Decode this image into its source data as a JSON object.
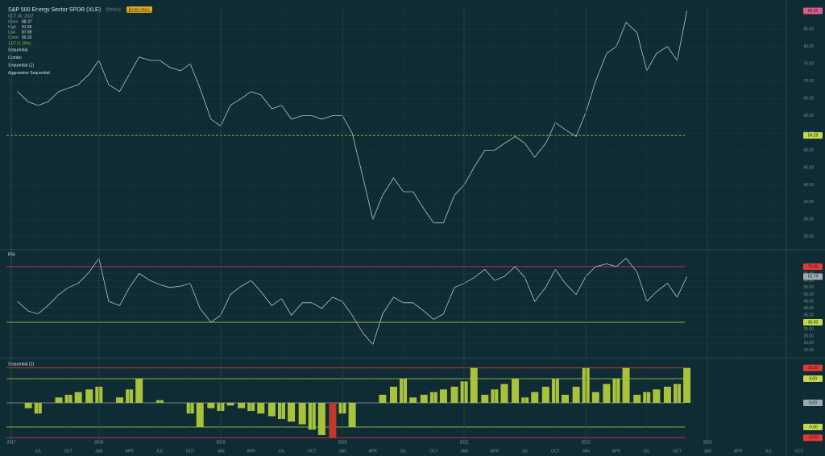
{
  "header": {
    "title": "S&P 500 Energy Sector SPDR (XLE)",
    "interval": "Weekly",
    "exchange": "NYSE ARCA",
    "date": "OCT 30, 2022",
    "ohlc": [
      {
        "label": "Open",
        "value": "88.37"
      },
      {
        "label": "High",
        "value": "91.55"
      },
      {
        "label": "Low",
        "value": "87.89"
      },
      {
        "label": "Close",
        "value": "90.32"
      }
    ],
    "change": "1.07 (1.20%)",
    "indicators": [
      "Sequential",
      "Combo",
      "Sequential (2)",
      "Aggressive Sequential"
    ]
  },
  "chart_data": [
    {
      "type": "line",
      "title": "Price",
      "color": "#b7c4ca",
      "x": [
        2017.33,
        2017.42,
        2017.5,
        2017.58,
        2017.67,
        2017.75,
        2017.83,
        2017.92,
        2018.0,
        2018.08,
        2018.17,
        2018.25,
        2018.33,
        2018.42,
        2018.5,
        2018.58,
        2018.67,
        2018.75,
        2018.83,
        2018.92,
        2019.0,
        2019.08,
        2019.17,
        2019.25,
        2019.33,
        2019.42,
        2019.5,
        2019.58,
        2019.67,
        2019.75,
        2019.83,
        2019.92,
        2020.0,
        2020.08,
        2020.17,
        2020.25,
        2020.33,
        2020.42,
        2020.5,
        2020.58,
        2020.67,
        2020.75,
        2020.83,
        2020.92,
        2021.0,
        2021.08,
        2021.17,
        2021.25,
        2021.33,
        2021.42,
        2021.5,
        2021.58,
        2021.67,
        2021.75,
        2021.83,
        2021.92,
        2022.0,
        2022.08,
        2022.17,
        2022.25,
        2022.33,
        2022.42,
        2022.5,
        2022.58,
        2022.67,
        2022.75,
        2022.83
      ],
      "values": [
        67,
        64,
        63,
        64,
        67,
        68,
        69,
        72,
        76,
        69,
        67,
        72,
        77,
        76,
        76,
        74,
        73,
        75,
        68,
        59,
        57,
        63,
        65,
        67,
        66,
        62,
        63,
        59,
        60,
        60,
        59,
        60,
        60,
        55,
        42,
        30,
        37,
        42,
        38,
        38,
        33,
        29,
        29,
        37,
        40,
        45,
        50,
        50,
        52,
        54,
        52,
        48,
        52,
        58,
        56,
        54,
        61,
        70,
        78,
        80,
        87,
        84,
        73,
        78,
        80,
        76,
        90.32
      ],
      "xlim": [
        2017.24,
        2023.64
      ],
      "ylim": [
        21.7,
        91.6
      ],
      "yticks": [
        {
          "value": 25,
          "label": "25.00"
        },
        {
          "value": 30,
          "label": "30.00"
        },
        {
          "value": 35,
          "label": "35.00"
        },
        {
          "value": 40,
          "label": "40.00"
        },
        {
          "value": 45,
          "label": "45.00"
        },
        {
          "value": 50,
          "label": "50.00"
        },
        {
          "value": 55,
          "label": "55.00"
        },
        {
          "value": 60,
          "label": "60.00"
        },
        {
          "value": 65,
          "label": "65.00"
        },
        {
          "value": 70,
          "label": "70.00"
        },
        {
          "value": 75,
          "label": "75.00"
        },
        {
          "value": 80,
          "label": "80.00"
        },
        {
          "value": 85,
          "label": "85.00"
        },
        {
          "value": 90,
          "label": "90.00"
        }
      ],
      "levels": [
        {
          "value": 54.29,
          "label": "54.29",
          "color": "#c5d94a"
        }
      ],
      "last_color": "#e05a8a"
    },
    {
      "type": "line",
      "title": "RSI",
      "color": "#b7c4ca",
      "x": [
        2017.33,
        2017.42,
        2017.5,
        2017.58,
        2017.67,
        2017.75,
        2017.83,
        2017.92,
        2018.0,
        2018.08,
        2018.17,
        2018.25,
        2018.33,
        2018.42,
        2018.5,
        2018.58,
        2018.67,
        2018.75,
        2018.83,
        2018.92,
        2019.0,
        2019.08,
        2019.17,
        2019.25,
        2019.33,
        2019.42,
        2019.5,
        2019.58,
        2019.67,
        2019.75,
        2019.83,
        2019.92,
        2020.0,
        2020.08,
        2020.17,
        2020.25,
        2020.33,
        2020.42,
        2020.5,
        2020.58,
        2020.67,
        2020.75,
        2020.83,
        2020.92,
        2021.0,
        2021.08,
        2021.17,
        2021.25,
        2021.33,
        2021.42,
        2021.5,
        2021.58,
        2021.67,
        2021.75,
        2021.83,
        2021.92,
        2022.0,
        2022.08,
        2022.17,
        2022.25,
        2022.33,
        2022.42,
        2022.5,
        2022.58,
        2022.67,
        2022.75,
        2022.83
      ],
      "values": [
        45,
        38,
        36,
        42,
        50,
        55,
        58,
        66,
        76,
        45,
        42,
        55,
        65,
        60,
        57,
        55,
        56,
        58,
        40,
        30,
        35,
        50,
        56,
        60,
        52,
        42,
        47,
        35,
        44,
        44,
        40,
        48,
        45,
        35,
        22,
        14,
        36,
        48,
        44,
        44,
        38,
        32,
        36,
        55,
        58,
        62,
        68,
        60,
        63,
        70,
        62,
        45,
        55,
        68,
        58,
        50,
        63,
        70,
        72,
        70,
        76,
        66,
        45,
        52,
        58,
        48,
        62.79
      ],
      "xlim": [
        2017.24,
        2023.64
      ],
      "ylim": [
        6.8,
        80.4
      ],
      "yticks": [
        {
          "value": 10,
          "label": "10.00"
        },
        {
          "value": 15,
          "label": "15.00"
        },
        {
          "value": 20,
          "label": "20.00"
        },
        {
          "value": 25,
          "label": "25.00"
        },
        {
          "value": 35,
          "label": "35.00"
        },
        {
          "value": 40,
          "label": "40.00"
        },
        {
          "value": 45,
          "label": "45.00"
        },
        {
          "value": 50,
          "label": "50.00"
        },
        {
          "value": 55,
          "label": "55.00"
        },
        {
          "value": 60,
          "label": "60.00"
        },
        {
          "value": 65,
          "label": "65.00"
        }
      ],
      "levels": [
        {
          "value": 70,
          "label": "70.00",
          "color": "#e53935"
        },
        {
          "value": 30,
          "label": "30.00",
          "color": "#c5d94a"
        }
      ],
      "last_color": "#9eaab0"
    },
    {
      "type": "bar",
      "title": "Sequential (2)",
      "color": "#a9c23c",
      "x": [
        2017.33,
        2017.42,
        2017.5,
        2017.58,
        2017.67,
        2017.75,
        2017.83,
        2017.92,
        2018.0,
        2018.08,
        2018.17,
        2018.25,
        2018.33,
        2018.42,
        2018.5,
        2018.58,
        2018.67,
        2018.75,
        2018.83,
        2018.92,
        2019.0,
        2019.08,
        2019.17,
        2019.25,
        2019.33,
        2019.42,
        2019.5,
        2019.58,
        2019.67,
        2019.75,
        2019.83,
        2019.92,
        2020.0,
        2020.08,
        2020.17,
        2020.25,
        2020.33,
        2020.42,
        2020.5,
        2020.58,
        2020.67,
        2020.75,
        2020.83,
        2020.92,
        2021.0,
        2021.08,
        2021.17,
        2021.25,
        2021.33,
        2021.42,
        2021.5,
        2021.58,
        2021.67,
        2021.75,
        2021.83,
        2021.92,
        2022.0,
        2022.08,
        2022.17,
        2022.25,
        2022.33,
        2022.42,
        2022.5,
        2022.58,
        2022.67,
        2022.75,
        2022.83
      ],
      "values": [
        0,
        -2,
        -4,
        0,
        2,
        3,
        4,
        5,
        6,
        0,
        2,
        5,
        9,
        0,
        1,
        0,
        0,
        -4,
        -9,
        -2,
        -3,
        -1,
        -2,
        -3,
        -4,
        -5,
        -6,
        -7,
        -8,
        -10,
        -12,
        -13,
        -4,
        -9,
        0,
        0,
        3,
        6,
        9,
        2,
        3,
        4,
        5,
        6,
        8,
        13,
        3,
        5,
        7,
        9,
        2,
        4,
        6,
        9,
        3,
        6,
        13,
        4,
        7,
        9,
        13,
        3,
        4,
        5,
        6,
        7,
        13
      ],
      "xlim": [
        2017.24,
        2023.64
      ],
      "ylim": [
        -14.4,
        15.6
      ],
      "levels": [
        {
          "value": 13,
          "label": "13.00",
          "color": "#e53935"
        },
        {
          "value": 9,
          "label": "9.00",
          "color": "#c5d94a"
        },
        {
          "value": 0,
          "label": "0.00",
          "color": "#9eaab0"
        },
        {
          "value": -9,
          "label": "-9.00",
          "color": "#c5d94a"
        },
        {
          "value": -13,
          "label": "-13.00",
          "color": "#e53935"
        }
      ],
      "xticks": [
        {
          "value": 2017.28,
          "label": "2017"
        },
        {
          "value": 2018,
          "label": "2018"
        },
        {
          "value": 2019,
          "label": "2019"
        },
        {
          "value": 2020,
          "label": "2020"
        },
        {
          "value": 2021,
          "label": "2021"
        },
        {
          "value": 2022,
          "label": "2022"
        },
        {
          "value": 2023,
          "label": "2023"
        }
      ],
      "xticks_months": [
        {
          "value": 2017.5,
          "label": "JUL"
        },
        {
          "value": 2017.75,
          "label": "OCT"
        },
        {
          "value": 2018,
          "label": "JAN"
        },
        {
          "value": 2018.25,
          "label": "APR"
        },
        {
          "value": 2018.5,
          "label": "JUL"
        },
        {
          "value": 2018.75,
          "label": "OCT"
        },
        {
          "value": 2019,
          "label": "JAN"
        },
        {
          "value": 2019.25,
          "label": "APR"
        },
        {
          "value": 2019.5,
          "label": "JUL"
        },
        {
          "value": 2019.75,
          "label": "OCT"
        },
        {
          "value": 2020,
          "label": "JAN"
        },
        {
          "value": 2020.25,
          "label": "APR"
        },
        {
          "value": 2020.5,
          "label": "JUL"
        },
        {
          "value": 2020.75,
          "label": "OCT"
        },
        {
          "value": 2021,
          "label": "JAN"
        },
        {
          "value": 2021.25,
          "label": "APR"
        },
        {
          "value": 2021.5,
          "label": "JUL"
        },
        {
          "value": 2021.75,
          "label": "OCT"
        },
        {
          "value": 2022,
          "label": "JAN"
        },
        {
          "value": 2022.25,
          "label": "APR"
        },
        {
          "value": 2022.5,
          "label": "JUL"
        },
        {
          "value": 2022.75,
          "label": "OCT"
        },
        {
          "value": 2023,
          "label": "JAN"
        },
        {
          "value": 2023.25,
          "label": "APR"
        },
        {
          "value": 2023.5,
          "label": "JUL"
        },
        {
          "value": 2023.75,
          "label": "OCT"
        }
      ]
    }
  ]
}
